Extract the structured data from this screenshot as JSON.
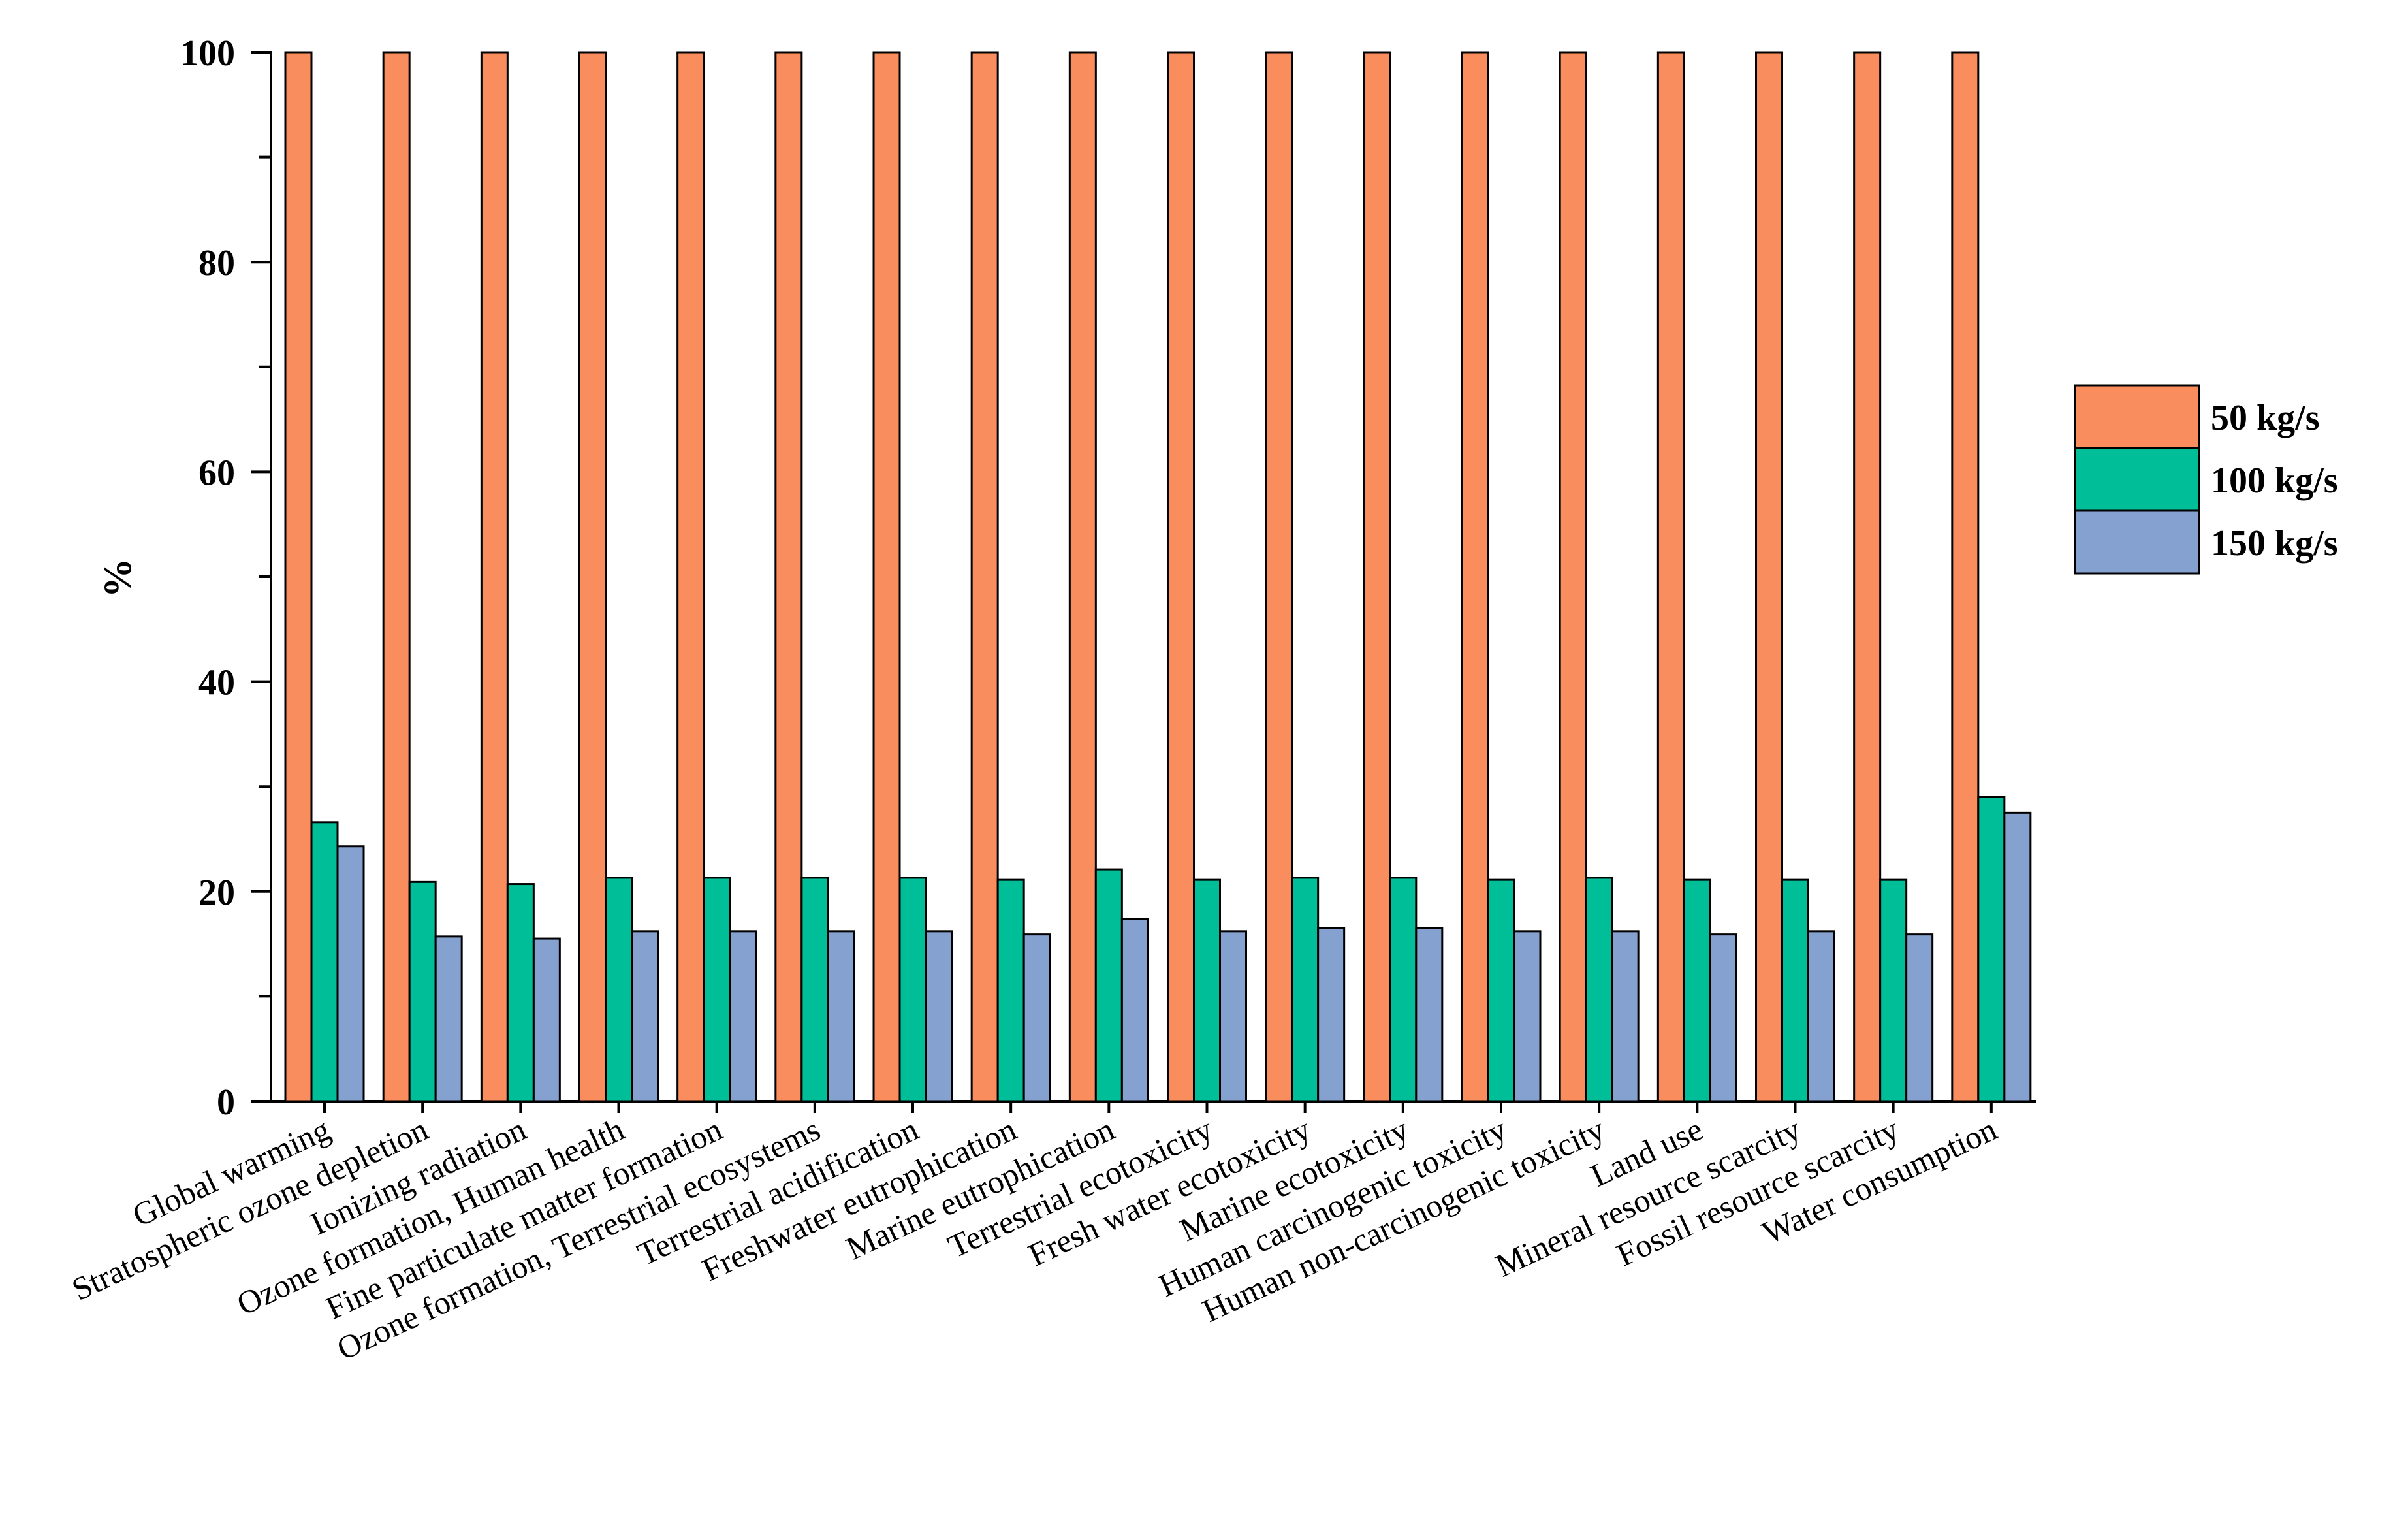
{
  "chart_data": {
    "type": "bar",
    "title": "",
    "xlabel": "",
    "ylabel": "%",
    "ylim": [
      0,
      100
    ],
    "yticks": [
      0,
      20,
      40,
      60,
      80,
      100
    ],
    "categories": [
      "Global warming",
      "Stratospheric ozone depletion",
      "Ionizing radiation",
      "Ozone formation, Human health",
      "Fine particulate matter formation",
      "Ozone formation, Terrestrial ecosystems",
      "Terrestrial acidification",
      "Freshwater eutrophication",
      "Marine eutrophication",
      "Terrestrial ecotoxicity",
      "Fresh water ecotoxicity",
      "Marine ecotoxicity",
      "Human carcinogenic toxicity",
      "Human non-carcinogenic toxicity",
      "Land use",
      "Mineral resource scarcity",
      "Fossil resource scarcity",
      "Water consumption"
    ],
    "series": [
      {
        "name": "50 kg/s",
        "color": "#F98D5D",
        "values": [
          100,
          100,
          100,
          100,
          100,
          100,
          100,
          100,
          100,
          100,
          100,
          100,
          100,
          100,
          100,
          100,
          100,
          100
        ]
      },
      {
        "name": "100 kg/s",
        "color": "#00BF98",
        "values": [
          26.6,
          20.9,
          20.7,
          21.3,
          21.3,
          21.3,
          21.3,
          21.1,
          22.1,
          21.1,
          21.3,
          21.3,
          21.1,
          21.3,
          21.1,
          21.1,
          21.1,
          29.0
        ]
      },
      {
        "name": "150 kg/s",
        "color": "#84A1D0",
        "values": [
          24.3,
          15.7,
          15.5,
          16.2,
          16.2,
          16.2,
          16.2,
          15.9,
          17.4,
          16.2,
          16.5,
          16.5,
          16.2,
          16.2,
          15.9,
          16.2,
          15.9,
          27.5
        ]
      }
    ],
    "legend_position": "right"
  }
}
